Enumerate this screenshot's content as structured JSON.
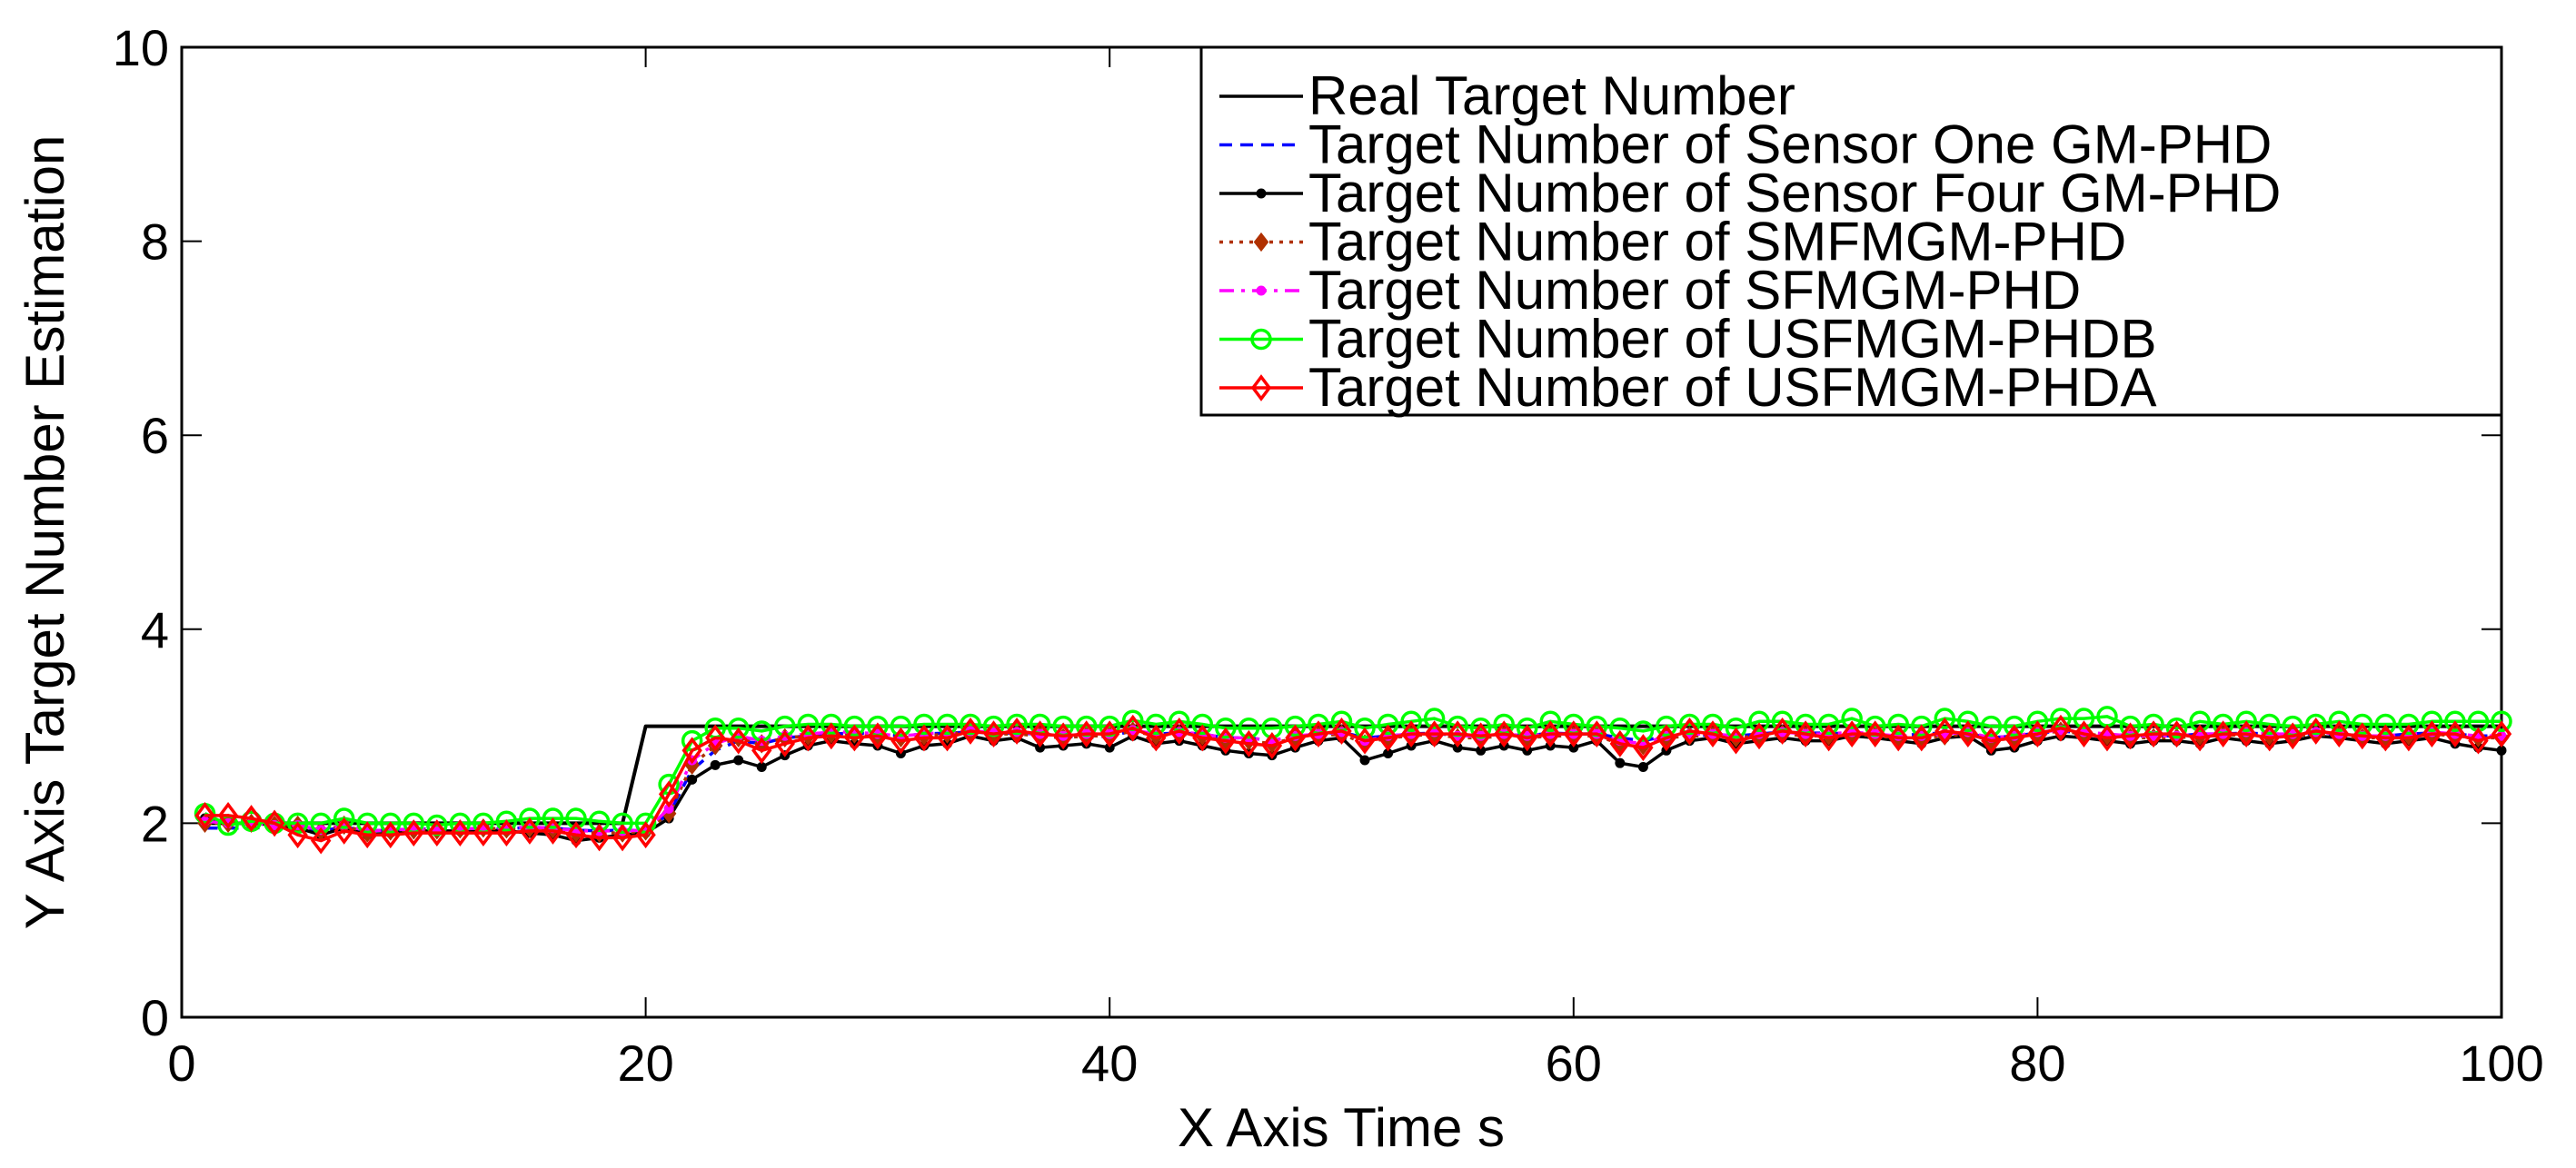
{
  "chart_data": {
    "type": "line",
    "xlabel": "X Axis Time s",
    "ylabel": "Y Axis Target Number Estimation",
    "xlim": [
      0,
      100
    ],
    "ylim": [
      0,
      10
    ],
    "xticks": [
      0,
      20,
      40,
      60,
      80,
      100
    ],
    "yticks": [
      0,
      2,
      4,
      6,
      8,
      10
    ],
    "legend_position": "top-right",
    "x": [
      1,
      2,
      3,
      4,
      5,
      6,
      7,
      8,
      9,
      10,
      11,
      12,
      13,
      14,
      15,
      16,
      17,
      18,
      19,
      20,
      21,
      22,
      23,
      24,
      25,
      26,
      27,
      28,
      29,
      30,
      31,
      32,
      33,
      34,
      35,
      36,
      37,
      38,
      39,
      40,
      41,
      42,
      43,
      44,
      45,
      46,
      47,
      48,
      49,
      50,
      51,
      52,
      53,
      54,
      55,
      56,
      57,
      58,
      59,
      60,
      61,
      62,
      63,
      64,
      65,
      66,
      67,
      68,
      69,
      70,
      71,
      72,
      73,
      74,
      75,
      76,
      77,
      78,
      79,
      80,
      81,
      82,
      83,
      84,
      85,
      86,
      87,
      88,
      89,
      90,
      91,
      92,
      93,
      94,
      95,
      96,
      97,
      98,
      99,
      100
    ],
    "series": [
      {
        "name": "Real Target Number",
        "color": "#000000",
        "dash": "solid",
        "marker": "none",
        "values": [
          2,
          2,
          2,
          2,
          2,
          2,
          2,
          2,
          2,
          2,
          2,
          2,
          2,
          2,
          2,
          2,
          2,
          2,
          2,
          3,
          3,
          3,
          3,
          3,
          3,
          3,
          3,
          3,
          3,
          3,
          3,
          3,
          3,
          3,
          3,
          3,
          3,
          3,
          3,
          3,
          3,
          3,
          3,
          3,
          3,
          3,
          3,
          3,
          3,
          3,
          3,
          3,
          3,
          3,
          3,
          3,
          3,
          3,
          3,
          3,
          3,
          3,
          3,
          3,
          3,
          3,
          3,
          3,
          3,
          3,
          3,
          3,
          3,
          3,
          3,
          3,
          3,
          3,
          3,
          3,
          3,
          3,
          3,
          3,
          3,
          3,
          3,
          3,
          3,
          3,
          3,
          3,
          3,
          3,
          3,
          3,
          3,
          3,
          3,
          3
        ]
      },
      {
        "name": "Target Number of Sensor One GM-PHD",
        "color": "#0000ff",
        "dash": "dash",
        "marker": "none",
        "values": [
          1.95,
          1.95,
          1.95,
          1.96,
          1.95,
          1.92,
          1.96,
          1.92,
          1.93,
          1.94,
          1.94,
          1.94,
          1.95,
          1.94,
          1.96,
          1.95,
          1.93,
          1.92,
          1.93,
          1.92,
          2.1,
          2.55,
          2.75,
          2.85,
          2.82,
          2.88,
          2.9,
          2.92,
          2.93,
          2.92,
          2.9,
          2.92,
          2.93,
          2.94,
          2.93,
          2.93,
          2.92,
          2.9,
          2.88,
          2.9,
          2.95,
          2.92,
          2.93,
          2.92,
          2.88,
          2.88,
          2.85,
          2.9,
          2.92,
          2.94,
          2.88,
          2.9,
          2.92,
          2.93,
          2.9,
          2.9,
          2.92,
          2.9,
          2.93,
          2.92,
          2.92,
          2.88,
          2.85,
          2.9,
          2.92,
          2.9,
          2.9,
          2.92,
          2.94,
          2.93,
          2.93,
          2.92,
          2.9,
          2.9,
          2.92,
          2.93,
          2.92,
          2.88,
          2.9,
          2.93,
          2.95,
          2.93,
          2.92,
          2.9,
          2.9,
          2.9,
          2.92,
          2.92,
          2.93,
          2.92,
          2.92,
          2.92,
          2.92,
          2.9,
          2.9,
          2.92,
          2.93,
          2.92,
          2.9,
          2.9
        ]
      },
      {
        "name": "Target Number of Sensor Four GM-PHD",
        "color": "#000000",
        "dash": "solid",
        "marker": "dot",
        "values": [
          2.05,
          2.0,
          2.0,
          1.98,
          1.95,
          1.88,
          1.95,
          1.88,
          1.9,
          1.92,
          1.92,
          1.92,
          1.93,
          1.92,
          1.9,
          1.88,
          1.82,
          1.85,
          1.88,
          1.9,
          2.05,
          2.45,
          2.6,
          2.65,
          2.58,
          2.7,
          2.8,
          2.85,
          2.82,
          2.8,
          2.72,
          2.8,
          2.82,
          2.9,
          2.85,
          2.88,
          2.78,
          2.8,
          2.82,
          2.78,
          2.9,
          2.82,
          2.85,
          2.8,
          2.75,
          2.72,
          2.7,
          2.78,
          2.85,
          2.88,
          2.65,
          2.72,
          2.8,
          2.85,
          2.78,
          2.75,
          2.8,
          2.75,
          2.8,
          2.78,
          2.85,
          2.62,
          2.58,
          2.75,
          2.85,
          2.88,
          2.82,
          2.85,
          2.88,
          2.85,
          2.85,
          2.9,
          2.88,
          2.85,
          2.82,
          2.88,
          2.9,
          2.75,
          2.78,
          2.85,
          2.9,
          2.88,
          2.85,
          2.82,
          2.85,
          2.85,
          2.82,
          2.88,
          2.85,
          2.82,
          2.85,
          2.9,
          2.88,
          2.85,
          2.82,
          2.85,
          2.88,
          2.82,
          2.78,
          2.75
        ]
      },
      {
        "name": "Target Number of SMFMGM-PHD",
        "color": "#b03000",
        "dash": "dot",
        "marker": "diamond-filled",
        "values": [
          2.0,
          2.0,
          2.0,
          1.98,
          1.98,
          1.92,
          1.98,
          1.9,
          1.92,
          1.93,
          1.93,
          1.94,
          1.95,
          1.94,
          1.95,
          1.94,
          1.9,
          1.9,
          1.9,
          1.92,
          2.1,
          2.6,
          2.8,
          2.88,
          2.82,
          2.88,
          2.9,
          2.92,
          2.92,
          2.9,
          2.88,
          2.9,
          2.92,
          2.94,
          2.92,
          2.92,
          2.9,
          2.88,
          2.9,
          2.9,
          2.95,
          2.9,
          2.92,
          2.9,
          2.85,
          2.85,
          2.82,
          2.88,
          2.9,
          2.92,
          2.82,
          2.88,
          2.9,
          2.92,
          2.88,
          2.88,
          2.9,
          2.88,
          2.9,
          2.9,
          2.9,
          2.82,
          2.8,
          2.88,
          2.9,
          2.9,
          2.88,
          2.9,
          2.92,
          2.9,
          2.9,
          2.92,
          2.9,
          2.88,
          2.88,
          2.9,
          2.92,
          2.85,
          2.88,
          2.92,
          2.95,
          2.92,
          2.9,
          2.88,
          2.88,
          2.88,
          2.9,
          2.9,
          2.92,
          2.9,
          2.9,
          2.92,
          2.9,
          2.88,
          2.88,
          2.9,
          2.92,
          2.9,
          2.88,
          2.88
        ]
      },
      {
        "name": "Target Number of SFMGM-PHD",
        "color": "#ff00ff",
        "dash": "dashdot",
        "marker": "dot",
        "values": [
          2.02,
          2.0,
          2.0,
          1.98,
          1.98,
          1.93,
          1.98,
          1.92,
          1.93,
          1.94,
          1.94,
          1.94,
          1.95,
          1.95,
          1.96,
          1.95,
          1.92,
          1.92,
          1.92,
          1.93,
          2.15,
          2.65,
          2.82,
          2.9,
          2.85,
          2.9,
          2.92,
          2.94,
          2.94,
          2.92,
          2.9,
          2.92,
          2.94,
          2.95,
          2.94,
          2.94,
          2.92,
          2.9,
          2.92,
          2.92,
          2.96,
          2.92,
          2.94,
          2.92,
          2.88,
          2.88,
          2.85,
          2.9,
          2.92,
          2.94,
          2.85,
          2.9,
          2.92,
          2.94,
          2.9,
          2.9,
          2.92,
          2.9,
          2.92,
          2.92,
          2.92,
          2.85,
          2.82,
          2.9,
          2.92,
          2.92,
          2.9,
          2.92,
          2.94,
          2.92,
          2.92,
          2.94,
          2.92,
          2.9,
          2.9,
          2.92,
          2.94,
          2.88,
          2.9,
          2.94,
          2.96,
          2.94,
          2.92,
          2.9,
          2.9,
          2.9,
          2.92,
          2.92,
          2.94,
          2.92,
          2.92,
          2.94,
          2.92,
          2.9,
          2.9,
          2.92,
          2.94,
          2.92,
          2.9,
          2.9
        ]
      },
      {
        "name": "Target Number of USFMGM-PHDB",
        "color": "#00ff00",
        "dash": "solid",
        "marker": "circle",
        "values": [
          2.1,
          1.98,
          2.02,
          2.0,
          2.0,
          2.0,
          2.05,
          2.0,
          2.0,
          2.0,
          1.98,
          2.0,
          2.0,
          2.02,
          2.05,
          2.05,
          2.05,
          2.02,
          2.0,
          2.0,
          2.4,
          2.85,
          2.98,
          2.98,
          2.95,
          3.0,
          3.02,
          3.02,
          3.0,
          3.0,
          3.0,
          3.02,
          3.02,
          3.02,
          3.0,
          3.02,
          3.02,
          3.0,
          3.0,
          3.0,
          3.06,
          3.02,
          3.05,
          3.02,
          2.98,
          2.98,
          2.98,
          3.0,
          3.02,
          3.05,
          2.98,
          3.02,
          3.05,
          3.08,
          3.0,
          2.98,
          3.02,
          2.98,
          3.05,
          3.02,
          3.0,
          2.98,
          2.95,
          3.0,
          3.02,
          3.02,
          2.98,
          3.05,
          3.05,
          3.02,
          3.02,
          3.08,
          3.0,
          3.02,
          3.0,
          3.08,
          3.05,
          3.0,
          3.0,
          3.05,
          3.08,
          3.08,
          3.1,
          3.0,
          3.02,
          2.98,
          3.05,
          3.02,
          3.05,
          3.02,
          3.0,
          3.02,
          3.05,
          3.02,
          3.02,
          3.02,
          3.05,
          3.05,
          3.05,
          3.05
        ]
      },
      {
        "name": "Target Number of USFMGM-PHDA",
        "color": "#ff0000",
        "dash": "solid",
        "marker": "diamond",
        "values": [
          2.08,
          2.08,
          2.05,
          2.0,
          1.88,
          1.82,
          1.92,
          1.88,
          1.88,
          1.9,
          1.9,
          1.9,
          1.9,
          1.9,
          1.92,
          1.92,
          1.88,
          1.85,
          1.85,
          1.88,
          2.3,
          2.75,
          2.88,
          2.85,
          2.75,
          2.82,
          2.88,
          2.9,
          2.88,
          2.9,
          2.85,
          2.88,
          2.88,
          2.95,
          2.92,
          2.95,
          2.92,
          2.9,
          2.92,
          2.92,
          2.98,
          2.88,
          2.95,
          2.88,
          2.85,
          2.82,
          2.8,
          2.88,
          2.92,
          2.95,
          2.85,
          2.88,
          2.92,
          2.92,
          2.92,
          2.9,
          2.92,
          2.88,
          2.92,
          2.92,
          2.92,
          2.82,
          2.78,
          2.88,
          2.95,
          2.92,
          2.85,
          2.9,
          2.95,
          2.92,
          2.88,
          2.92,
          2.92,
          2.88,
          2.88,
          2.95,
          2.92,
          2.85,
          2.88,
          2.92,
          2.98,
          2.92,
          2.88,
          2.9,
          2.92,
          2.92,
          2.88,
          2.92,
          2.92,
          2.88,
          2.9,
          2.95,
          2.92,
          2.9,
          2.88,
          2.88,
          2.92,
          2.92,
          2.85,
          2.92
        ]
      }
    ]
  }
}
